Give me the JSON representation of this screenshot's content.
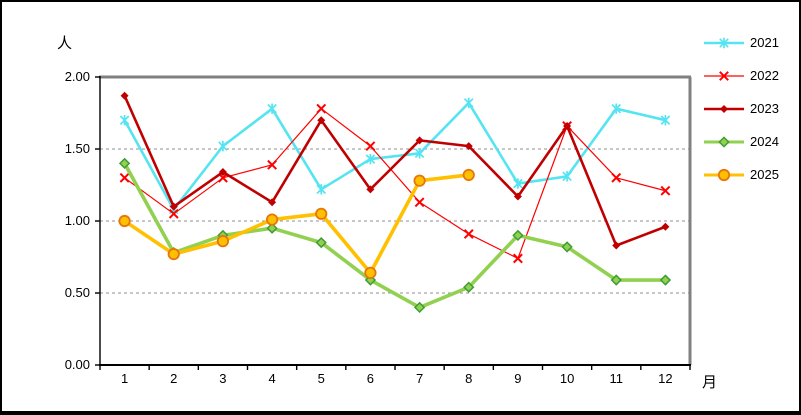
{
  "chart_data": {
    "type": "line",
    "title": "",
    "ylabel": "人",
    "xlabel": "月",
    "ylim": [
      0,
      2
    ],
    "ytick_step": 0.5,
    "ytick_labels": [
      "0.00",
      "0.50",
      "1.00",
      "1.50",
      "2.00"
    ],
    "categories": [
      "1",
      "2",
      "3",
      "4",
      "5",
      "6",
      "7",
      "8",
      "9",
      "10",
      "11",
      "12"
    ],
    "grid": "horizontal-dashed",
    "legend_position": "right",
    "colors": {
      "axis": "#000000",
      "plot_border_shadow": "#808080",
      "gridline": "#909090",
      "background": "#ffffff"
    },
    "series": [
      {
        "name": "2021",
        "color": "#55E4F2",
        "marker": "star",
        "marker_stroke": "#55E4F2",
        "line_width": 2.6,
        "values": [
          1.7,
          1.08,
          1.52,
          1.78,
          1.22,
          1.43,
          1.47,
          1.82,
          1.26,
          1.31,
          1.78,
          1.7
        ]
      },
      {
        "name": "2022",
        "color": "#FF0000",
        "marker": "x",
        "marker_stroke": "#FF0000",
        "line_width": 1.2,
        "values": [
          1.3,
          1.05,
          1.3,
          1.39,
          1.78,
          1.52,
          1.13,
          0.91,
          0.74,
          1.66,
          1.3,
          1.21
        ]
      },
      {
        "name": "2023",
        "color": "#C00000",
        "marker": "diamond-small",
        "marker_stroke": "#C00000",
        "line_width": 2.6,
        "values": [
          1.87,
          1.1,
          1.34,
          1.13,
          1.7,
          1.22,
          1.56,
          1.52,
          1.17,
          1.66,
          0.83,
          0.96
        ]
      },
      {
        "name": "2024",
        "color": "#92D050",
        "marker": "diamond",
        "marker_stroke": "#3F9C35",
        "line_width": 3.6,
        "values": [
          1.4,
          0.78,
          0.9,
          0.95,
          0.85,
          0.59,
          0.4,
          0.54,
          0.9,
          0.82,
          0.59,
          0.59
        ]
      },
      {
        "name": "2025",
        "color": "#FFC000",
        "marker": "circle",
        "marker_stroke": "#E8750C",
        "line_width": 3.6,
        "values": [
          1.0,
          0.77,
          0.86,
          1.01,
          1.05,
          0.64,
          1.28,
          1.32,
          null,
          null,
          null,
          null
        ]
      }
    ]
  }
}
